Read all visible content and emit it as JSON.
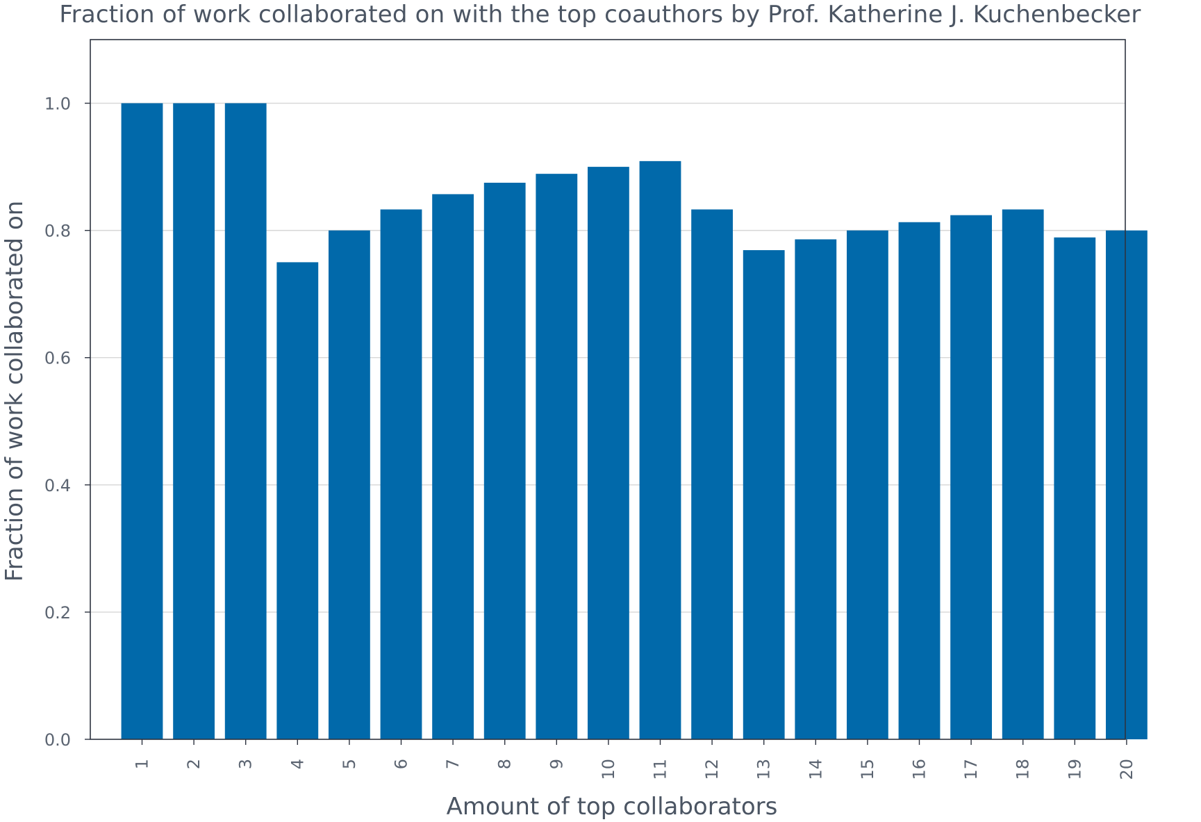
{
  "chart_data": {
    "type": "bar",
    "title": "Fraction of work collaborated on with the top coauthors by Prof. Katherine J. Kuchenbecker",
    "xlabel": "Amount of top collaborators",
    "ylabel": "Fraction of work collaborated on",
    "categories": [
      "1",
      "2",
      "3",
      "4",
      "5",
      "6",
      "7",
      "8",
      "9",
      "10",
      "11",
      "12",
      "13",
      "14",
      "15",
      "16",
      "17",
      "18",
      "19",
      "20"
    ],
    "values": [
      1.0,
      1.0,
      1.0,
      0.75,
      0.8,
      0.833,
      0.857,
      0.875,
      0.889,
      0.9,
      0.909,
      0.833,
      0.769,
      0.786,
      0.8,
      0.813,
      0.824,
      0.833,
      0.789,
      0.8
    ],
    "ylim": [
      0,
      1.1
    ],
    "yticks": [
      "0.0",
      "0.2",
      "0.4",
      "0.6",
      "0.8",
      "1.0"
    ],
    "grid": "horizontal",
    "legend": "none",
    "bar_color": "#0169aa"
  }
}
